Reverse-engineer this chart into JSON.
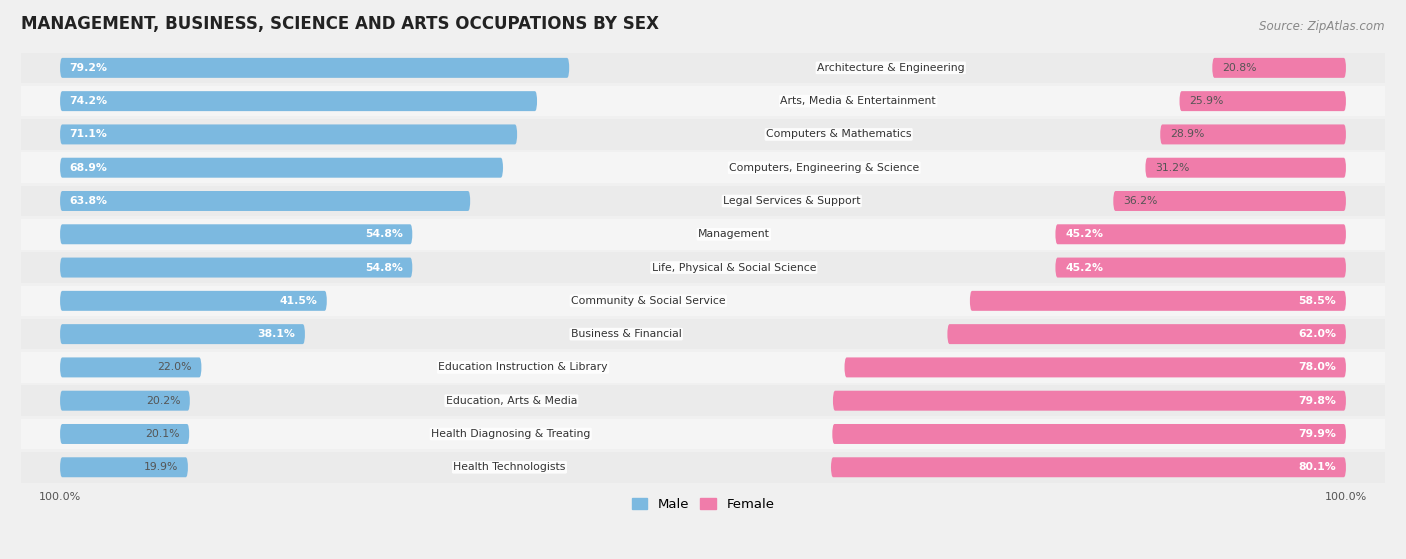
{
  "title": "MANAGEMENT, BUSINESS, SCIENCE AND ARTS OCCUPATIONS BY SEX",
  "source": "Source: ZipAtlas.com",
  "categories": [
    "Architecture & Engineering",
    "Arts, Media & Entertainment",
    "Computers & Mathematics",
    "Computers, Engineering & Science",
    "Legal Services & Support",
    "Management",
    "Life, Physical & Social Science",
    "Community & Social Service",
    "Business & Financial",
    "Education Instruction & Library",
    "Education, Arts & Media",
    "Health Diagnosing & Treating",
    "Health Technologists"
  ],
  "male_pct": [
    79.2,
    74.2,
    71.1,
    68.9,
    63.8,
    54.8,
    54.8,
    41.5,
    38.1,
    22.0,
    20.2,
    20.1,
    19.9
  ],
  "female_pct": [
    20.8,
    25.9,
    28.9,
    31.2,
    36.2,
    45.2,
    45.2,
    58.5,
    62.0,
    78.0,
    79.8,
    79.9,
    80.1
  ],
  "male_color": "#7cb9e0",
  "female_color": "#f07caa",
  "female_color_bright": "#f0579a",
  "bg_color": "#f0f0f0",
  "row_bg_light": "#e8e8e8",
  "row_bg_white": "#fafafa",
  "title_fontsize": 12,
  "label_fontsize": 8,
  "source_fontsize": 8.5,
  "legend_fontsize": 9.5
}
